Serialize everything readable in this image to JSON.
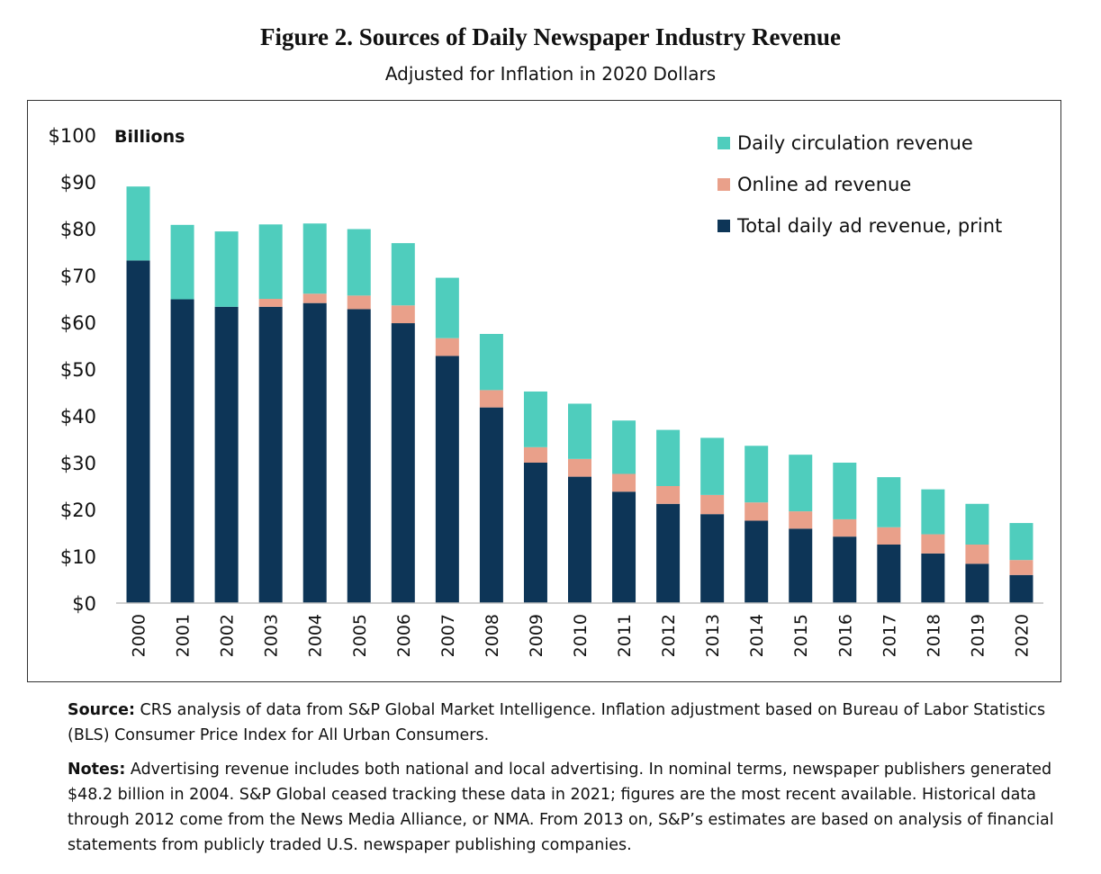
{
  "figure": {
    "title": "Figure 2. Sources of Daily Newspaper Industry Revenue",
    "subtitle": "Adjusted for Inflation in 2020 Dollars"
  },
  "chart_data": {
    "type": "bar",
    "stacked": true,
    "categories": [
      "2000",
      "2001",
      "2002",
      "2003",
      "2004",
      "2005",
      "2006",
      "2007",
      "2008",
      "2009",
      "2010",
      "2011",
      "2012",
      "2013",
      "2014",
      "2015",
      "2016",
      "2017",
      "2018",
      "2019",
      "2020"
    ],
    "series": [
      {
        "name": "Total daily ad revenue, print",
        "color": "#0d3557",
        "values": [
          73.2,
          64.9,
          63.3,
          63.3,
          64.1,
          62.8,
          59.8,
          52.8,
          41.8,
          30.0,
          27.0,
          23.8,
          21.2,
          19.0,
          17.6,
          15.9,
          14.2,
          12.5,
          10.6,
          8.4,
          6.0
        ]
      },
      {
        "name": "Online ad revenue",
        "color": "#e9a08a",
        "values": [
          0,
          0,
          0,
          1.7,
          2.0,
          2.9,
          3.8,
          3.8,
          3.7,
          3.3,
          3.8,
          3.8,
          3.8,
          4.1,
          3.9,
          3.7,
          3.7,
          3.7,
          4.1,
          4.1,
          3.2
        ]
      },
      {
        "name": "Daily circulation revenue",
        "color": "#4fcdbd",
        "values": [
          15.8,
          15.9,
          16.1,
          15.9,
          15.0,
          14.2,
          13.3,
          12.9,
          12.0,
          11.9,
          11.8,
          11.4,
          12.0,
          12.2,
          12.1,
          12.1,
          12.1,
          10.7,
          9.6,
          8.7,
          7.9
        ]
      }
    ],
    "y_tick_labels": [
      "$0",
      "$10",
      "$20",
      "$30",
      "$40",
      "$50",
      "$60",
      "$70",
      "$80",
      "$90",
      "$100"
    ],
    "y_unit_label": "Billions",
    "ylim": [
      0,
      100
    ],
    "legend_order": [
      2,
      1,
      0
    ],
    "legend_position": "top-right",
    "grid": false
  },
  "notes": {
    "source_label": "Source:",
    "source_text": "CRS analysis of data from S&P Global Market Intelligence. Inflation adjustment based on Bureau of Labor Statistics (BLS) Consumer Price Index for All Urban Consumers.",
    "notes_label": "Notes:",
    "notes_text": "Advertising revenue includes both national and local advertising. In nominal terms, newspaper publishers generated $48.2 billion in 2004. S&P Global ceased tracking these data in 2021; figures are the most recent available. Historical data through 2012 come from the News Media Alliance, or NMA. From 2013 on, S&P’s estimates are based on analysis of financial statements from publicly traded U.S. newspaper publishing companies."
  }
}
